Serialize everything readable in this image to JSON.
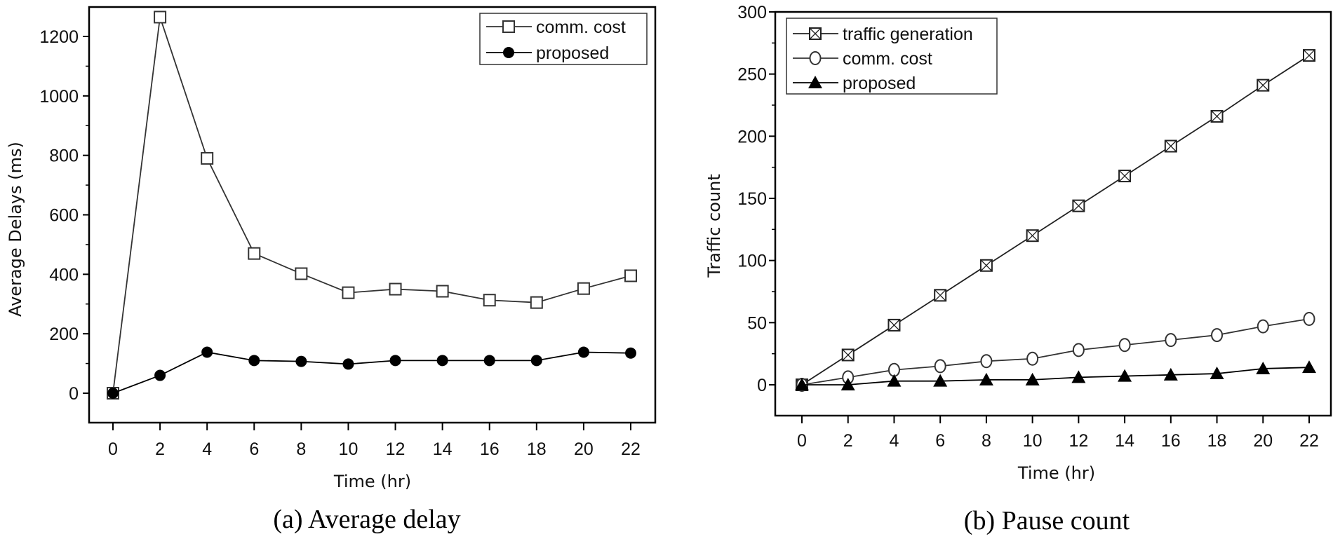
{
  "chart_data": [
    {
      "type": "line",
      "caption": "(a) Average delay",
      "xlabel": "Time (hr)",
      "ylabel": "Average Delays (ms)",
      "x": [
        0,
        2,
        4,
        6,
        8,
        10,
        12,
        14,
        16,
        18,
        20,
        22
      ],
      "xticks": [
        "0",
        "2",
        "4",
        "6",
        "8",
        "10",
        "12",
        "14",
        "16",
        "18",
        "20",
        "22"
      ],
      "yticks": [
        "0",
        "200",
        "400",
        "600",
        "800",
        "1000",
        "1200"
      ],
      "ylim": [
        -100,
        1280
      ],
      "xlim": [
        -1,
        23
      ],
      "grid": false,
      "legend_position": "top-right",
      "series": [
        {
          "name": "comm. cost",
          "marker": "open-square",
          "color": "#333333",
          "values": [
            0,
            1265,
            790,
            470,
            402,
            338,
            350,
            343,
            313,
            305,
            352,
            395
          ]
        },
        {
          "name": "proposed",
          "marker": "filled-circle",
          "color": "#000000",
          "values": [
            0,
            60,
            138,
            110,
            107,
            98,
            110,
            110,
            110,
            110,
            138,
            135
          ]
        }
      ]
    },
    {
      "type": "line",
      "caption": "(b) Pause count",
      "xlabel": "Time (hr)",
      "ylabel": "Traffic count",
      "x": [
        0,
        2,
        4,
        6,
        8,
        10,
        12,
        14,
        16,
        18,
        20,
        22
      ],
      "xticks": [
        "0",
        "2",
        "4",
        "6",
        "8",
        "10",
        "12",
        "14",
        "16",
        "18",
        "20",
        "22"
      ],
      "yticks": [
        "0",
        "50",
        "100",
        "150",
        "200",
        "250",
        "300"
      ],
      "ylim": [
        -25,
        300
      ],
      "xlim": [
        -1,
        23
      ],
      "grid": false,
      "legend_position": "top-left",
      "series": [
        {
          "name": "traffic generation",
          "marker": "crossed-square",
          "color": "#222222",
          "values": [
            0,
            24,
            48,
            72,
            96,
            120,
            144,
            168,
            192,
            216,
            241,
            265
          ]
        },
        {
          "name": "comm. cost",
          "marker": "open-circle",
          "color": "#333333",
          "values": [
            0,
            6,
            12,
            15,
            19,
            21,
            28,
            32,
            36,
            40,
            47,
            53
          ]
        },
        {
          "name": "proposed",
          "marker": "filled-triangle",
          "color": "#000000",
          "values": [
            0,
            0,
            3,
            3,
            4,
            4,
            6,
            7,
            8,
            9,
            13,
            14
          ]
        }
      ]
    }
  ]
}
